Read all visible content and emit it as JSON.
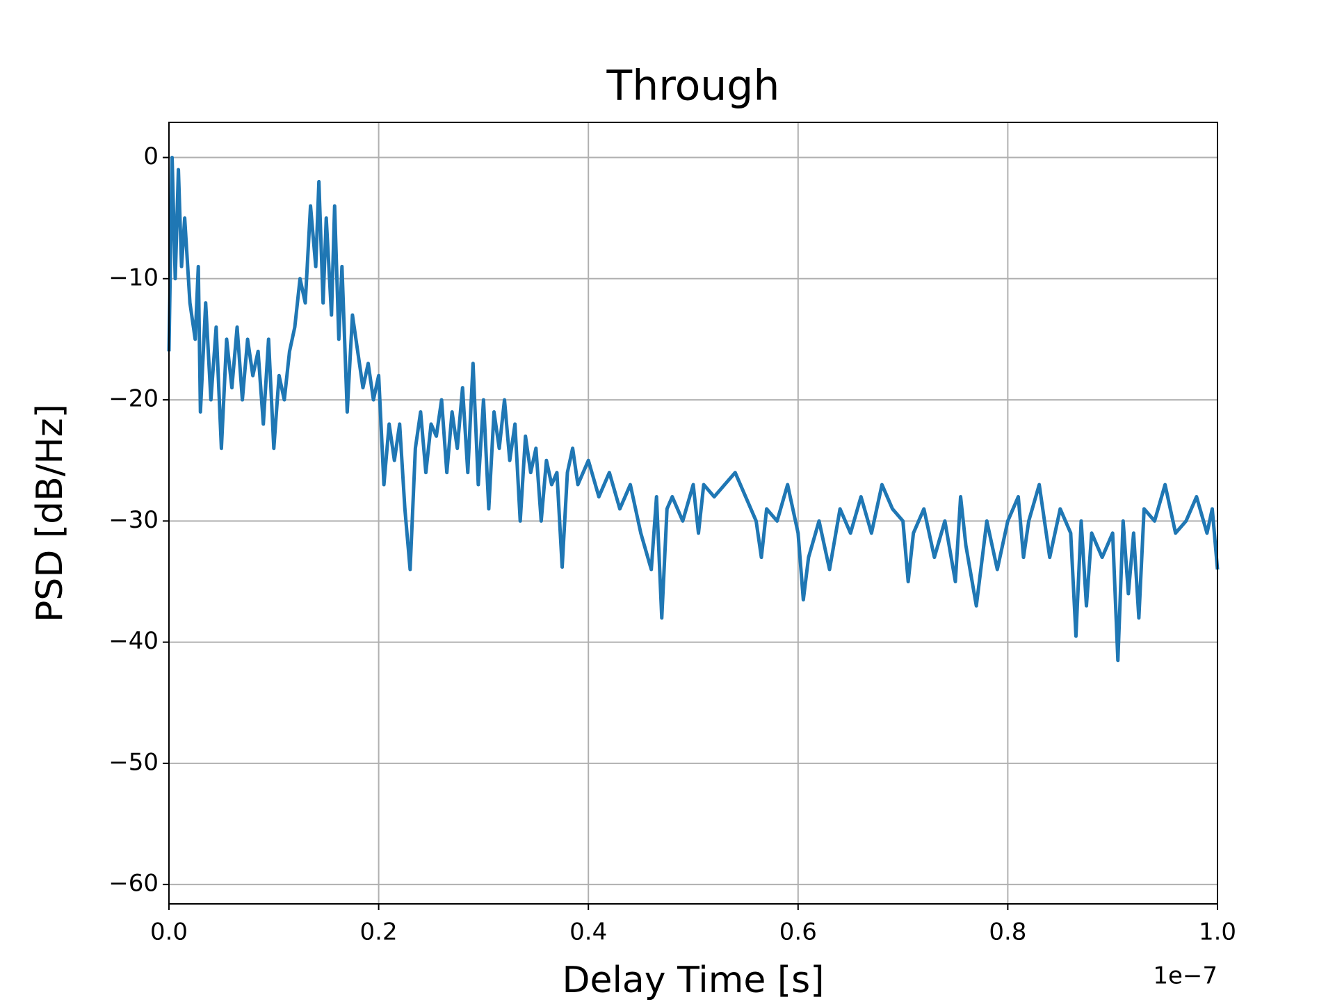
{
  "chart_data": {
    "type": "line",
    "title": "Through",
    "xlabel": "Delay Time [s]",
    "ylabel": "PSD [dB/Hz]",
    "x_offset_label": "1e−7",
    "color": "#1f77b4",
    "grid": true,
    "xlim": [
      0,
      1.0
    ],
    "ylim": [
      -61.6,
      2.9
    ],
    "xticks": [
      {
        "value": 0,
        "label": "0.0"
      },
      {
        "value": 0.2,
        "label": "0.2"
      },
      {
        "value": 0.4,
        "label": "0.4"
      },
      {
        "value": 0.6,
        "label": "0.6"
      },
      {
        "value": 0.8,
        "label": "0.8"
      },
      {
        "value": 1.0,
        "label": "1.0"
      }
    ],
    "yticks": [
      0,
      {
        "value": -10,
        "label": "−10"
      },
      {
        "value": -20,
        "label": "−20"
      },
      {
        "value": -30,
        "label": "−30"
      },
      {
        "value": -40,
        "label": "−40"
      },
      {
        "value": -50,
        "label": "−50"
      },
      {
        "value": -60,
        "label": "−60"
      }
    ],
    "x": [
      0.0,
      0.003,
      0.006,
      0.009,
      0.012,
      0.015,
      0.02,
      0.025,
      0.028,
      0.03,
      0.035,
      0.04,
      0.045,
      0.05,
      0.055,
      0.06,
      0.065,
      0.07,
      0.075,
      0.08,
      0.085,
      0.09,
      0.095,
      0.1,
      0.105,
      0.11,
      0.115,
      0.12,
      0.125,
      0.13,
      0.135,
      0.14,
      0.143,
      0.147,
      0.15,
      0.155,
      0.158,
      0.162,
      0.165,
      0.17,
      0.175,
      0.18,
      0.185,
      0.19,
      0.195,
      0.2,
      0.205,
      0.21,
      0.215,
      0.22,
      0.225,
      0.23,
      0.235,
      0.24,
      0.245,
      0.25,
      0.255,
      0.26,
      0.265,
      0.27,
      0.275,
      0.28,
      0.285,
      0.29,
      0.295,
      0.3,
      0.305,
      0.31,
      0.315,
      0.32,
      0.325,
      0.33,
      0.335,
      0.34,
      0.345,
      0.35,
      0.355,
      0.36,
      0.365,
      0.37,
      0.375,
      0.38,
      0.385,
      0.39,
      0.4,
      0.41,
      0.42,
      0.43,
      0.44,
      0.45,
      0.46,
      0.465,
      0.47,
      0.475,
      0.48,
      0.49,
      0.5,
      0.505,
      0.51,
      0.52,
      0.53,
      0.54,
      0.55,
      0.56,
      0.565,
      0.57,
      0.58,
      0.59,
      0.6,
      0.605,
      0.61,
      0.62,
      0.63,
      0.64,
      0.65,
      0.66,
      0.67,
      0.68,
      0.69,
      0.7,
      0.705,
      0.71,
      0.72,
      0.73,
      0.74,
      0.75,
      0.755,
      0.76,
      0.77,
      0.78,
      0.79,
      0.8,
      0.81,
      0.815,
      0.82,
      0.83,
      0.84,
      0.85,
      0.86,
      0.865,
      0.87,
      0.875,
      0.88,
      0.89,
      0.9,
      0.905,
      0.91,
      0.915,
      0.92,
      0.925,
      0.93,
      0.94,
      0.95,
      0.96,
      0.97,
      0.98,
      0.99,
      0.995,
      1.0
    ],
    "values": [
      -16,
      0,
      -10,
      -1,
      -9,
      -5,
      -12,
      -15,
      -9,
      -21,
      -12,
      -20,
      -14,
      -24,
      -15,
      -19,
      -14,
      -20,
      -15,
      -18,
      -16,
      -22,
      -15,
      -24,
      -18,
      -20,
      -16,
      -14,
      -10,
      -12,
      -4,
      -9,
      -2,
      -12,
      -5,
      -13,
      -4,
      -15,
      -9,
      -21,
      -13,
      -16,
      -19,
      -17,
      -20,
      -18,
      -27,
      -22,
      -25,
      -22,
      -29,
      -34,
      -24,
      -21,
      -26,
      -22,
      -23,
      -20,
      -26,
      -21,
      -24,
      -19,
      -26,
      -17,
      -27,
      -20,
      -29,
      -21,
      -24,
      -20,
      -25,
      -22,
      -30,
      -23,
      -26,
      -24,
      -30,
      -25,
      -27,
      -26,
      -33.8,
      -26,
      -24,
      -27,
      -25,
      -28,
      -26,
      -29,
      -27,
      -31,
      -34,
      -28,
      -38,
      -29,
      -28,
      -30,
      -27,
      -31,
      -27,
      -28,
      -27,
      -26,
      -28,
      -30,
      -33,
      -29,
      -30,
      -27,
      -31,
      -36.5,
      -33,
      -30,
      -34,
      -29,
      -31,
      -28,
      -31,
      -27,
      -29,
      -30,
      -35,
      -31,
      -29,
      -33,
      -30,
      -35,
      -28,
      -32,
      -37,
      -30,
      -34,
      -30,
      -28,
      -33,
      -30,
      -27,
      -33,
      -29,
      -31,
      -39.5,
      -30,
      -37,
      -31,
      -33,
      -31,
      -41.5,
      -30,
      -36,
      -31,
      -38,
      -29,
      -30,
      -27,
      -31,
      -30,
      -28,
      -31,
      -29,
      -34
    ]
  }
}
